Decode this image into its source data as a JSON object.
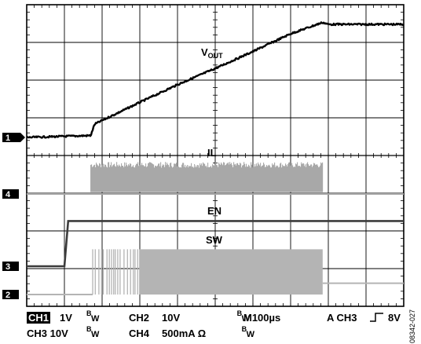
{
  "chart_data": {
    "type": "line",
    "title": "",
    "grid": true,
    "x_divisions": 10,
    "y_divisions": 8,
    "time_per_div": "100µs",
    "series": [
      {
        "name": "VOUT",
        "channel": "1",
        "color": "#000000",
        "x_div": [
          0,
          1.7,
          1.8,
          2.0,
          3.0,
          4.0,
          5.0,
          6.0,
          7.0,
          7.85,
          8.0,
          10.0
        ],
        "y_div": [
          0.0,
          0.05,
          0.35,
          0.45,
          0.93,
          1.4,
          1.83,
          2.28,
          2.75,
          3.05,
          3.0,
          3.0
        ]
      },
      {
        "name": "IL",
        "channel": "4",
        "color": "#a8a8a8",
        "baseline_div": 0,
        "envelope": [
          {
            "x_start_div": 1.7,
            "x_end_div": 7.85,
            "high_div": 0.85,
            "low_div": 0.05
          }
        ]
      },
      {
        "name": "EN",
        "channel": "3",
        "color": "#3c3c3c",
        "x_div": [
          0,
          1.0,
          1.1,
          10.0
        ],
        "y_div": [
          0.0,
          0.0,
          1.2,
          1.2
        ]
      },
      {
        "name": "SW",
        "channel": "2",
        "color": "#b4b4b4",
        "baseline_div": 0,
        "envelope": [
          {
            "x_start_div": 1.75,
            "x_end_div": 7.85,
            "high_div": 1.2,
            "low_div": 0.0
          }
        ],
        "post_level_div": 0.3
      }
    ],
    "trace_labels": {
      "vout_main": "V",
      "vout_sub": "OUT",
      "il": "IL",
      "en": "EN",
      "sw": "SW"
    },
    "channel_markers": [
      "1",
      "4",
      "3",
      "2"
    ]
  },
  "footer": {
    "ch1_chip": "CH1",
    "ch1_scale": "1V",
    "ch2": "CH2",
    "ch2_scale": "10V",
    "ch3_scale_row": "CH3  10V",
    "ch4": "CH4",
    "ch4_scale": "500mA Ω",
    "bw_b": "B",
    "bw_w": "W",
    "timebase": "M100µs",
    "trigger_prefix": "A  CH3",
    "trigger_symbol": "⌐",
    "trigger_level": "8V"
  },
  "figure_id": "08342-027"
}
